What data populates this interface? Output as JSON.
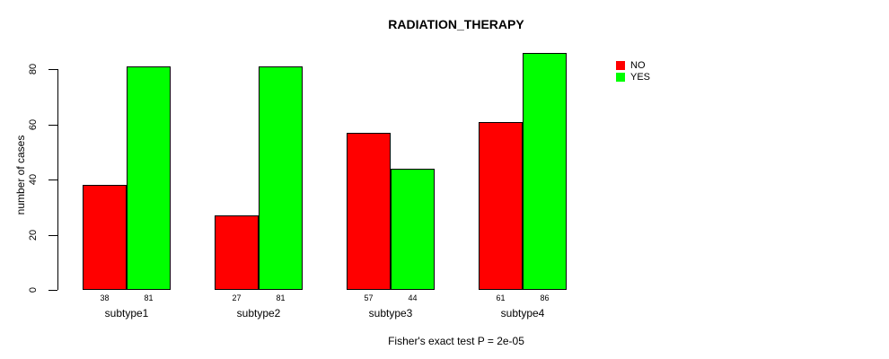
{
  "title": "RADIATION_THERAPY",
  "ylabel": "number of cases",
  "footer": "Fisher's exact test P = 2e-05",
  "legend": {
    "items": [
      {
        "label": "NO",
        "color": "#ff0000"
      },
      {
        "label": "YES",
        "color": "#00ff00"
      }
    ]
  },
  "chart_data": {
    "type": "bar",
    "title": "RADIATION_THERAPY",
    "categories": [
      "subtype1",
      "subtype2",
      "subtype3",
      "subtype4"
    ],
    "series": [
      {
        "name": "NO",
        "color": "#ff0000",
        "values": [
          38,
          27,
          57,
          61
        ]
      },
      {
        "name": "YES",
        "color": "#00ff00",
        "values": [
          81,
          81,
          44,
          86
        ]
      }
    ],
    "ylabel": "number of cases",
    "xlabel": "",
    "yticks": [
      0,
      20,
      40,
      60,
      80
    ],
    "ylim": [
      0,
      86
    ],
    "grid": false,
    "bar_value_labels": true,
    "legend_position": "right-outside",
    "annotation": "Fisher's exact test P = 2e-05"
  }
}
